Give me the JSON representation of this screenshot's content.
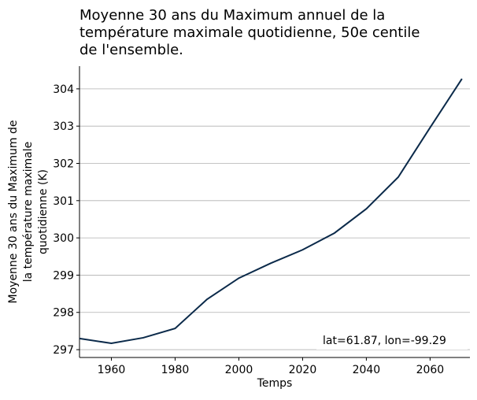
{
  "chart_data": {
    "type": "line",
    "title": [
      "Moyenne 30 ans du Maximum annuel de la",
      "température maximale quotidienne, 50e centile",
      "de l'ensemble."
    ],
    "ylabel": [
      "Moyenne 30 ans du Maximum de",
      "la température maximale",
      "quotidienne (K)"
    ],
    "xlabel": "Temps",
    "annotation": "lat=61.87, lon=-99.29",
    "x": [
      1950,
      1960,
      1970,
      1980,
      1990,
      2000,
      2010,
      2020,
      2030,
      2040,
      2050,
      2060,
      2070
    ],
    "series": [
      {
        "color": "#0b2a4a",
        "values": [
          297.3,
          297.17,
          297.32,
          297.57,
          298.35,
          298.92,
          299.32,
          299.68,
          300.13,
          300.78,
          301.63,
          302.96,
          304.27
        ]
      }
    ],
    "xlim": [
      1950,
      2072.5
    ],
    "xticks": [
      1960,
      1980,
      2000,
      2020,
      2040,
      2060
    ],
    "ylim": [
      296.79,
      304.61
    ],
    "yticks": [
      297,
      298,
      299,
      300,
      301,
      302,
      303,
      304
    ],
    "grid": true
  }
}
